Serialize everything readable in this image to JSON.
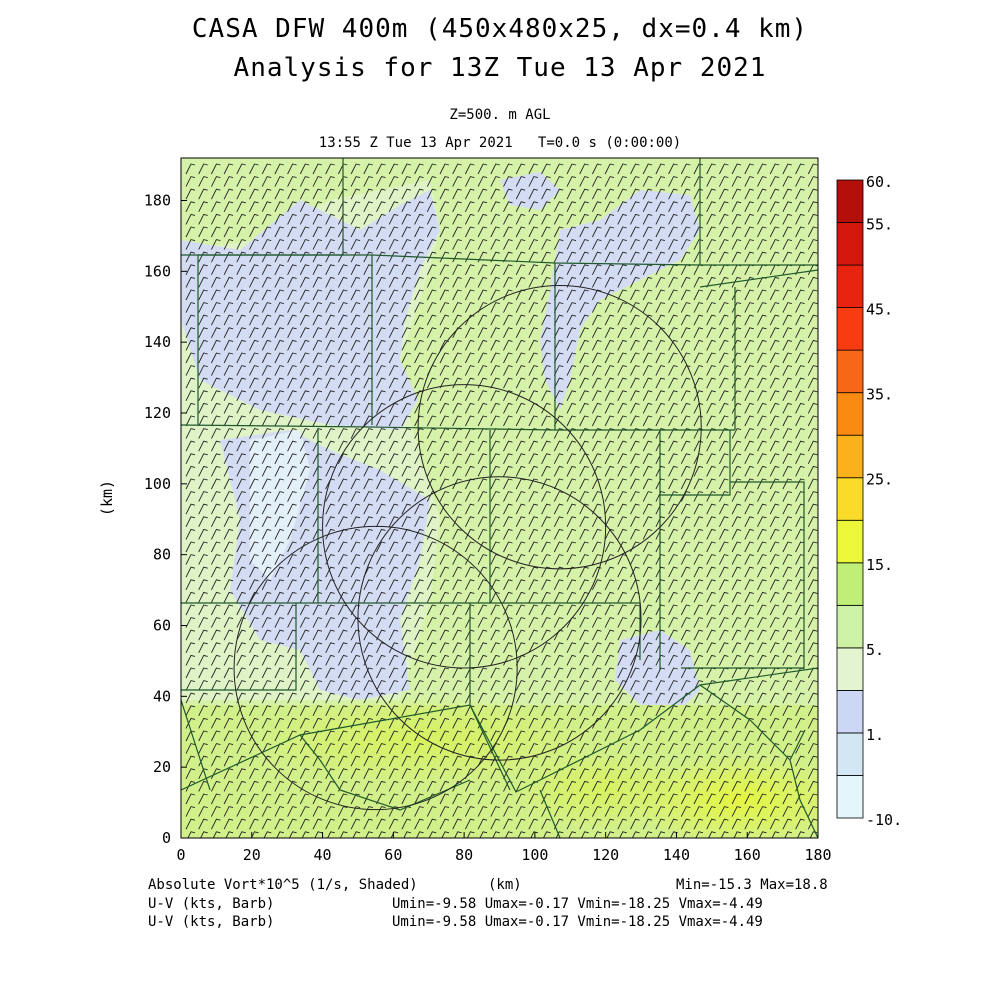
{
  "header": {
    "title": "CASA DFW 400m (450x480x25, dx=0.4 km)",
    "subtitle": "Analysis for 13Z Tue 13 Apr 2021",
    "level": "Z=500. m AGL",
    "time": "13:55 Z Tue 13 Apr 2021   T=0.0 s (0:00:00)"
  },
  "axes": {
    "x_ticks": [
      "0",
      "20",
      "40",
      "60",
      "80",
      "100",
      "120",
      "140",
      "160",
      "180"
    ],
    "y_ticks": [
      "0",
      "20",
      "40",
      "60",
      "80",
      "100",
      "120",
      "140",
      "160",
      "180"
    ],
    "x_label": "(km)",
    "y_label": "(km)",
    "xlim": [
      0,
      180
    ],
    "ylim": [
      0,
      192
    ]
  },
  "colorbar": {
    "labels": [
      "60.",
      "55.",
      "45.",
      "35.",
      "25.",
      "15.",
      "5.",
      "1.",
      "-10."
    ],
    "colors": [
      "#e4f5fb",
      "#d2e6f4",
      "#ccd7f4",
      "#e2f5d0",
      "#cdf2a5",
      "#bfef76",
      "#ecf73a",
      "#fadb2a",
      "#fbb11b",
      "#fa8a12",
      "#f86617",
      "#f93b12",
      "#e82410",
      "#d2170d",
      "#b40f0a"
    ]
  },
  "footer": {
    "field": "Absolute Vort*10^5 (1/s, Shaded)",
    "field_range": "Min=-15.3 Max=18.8",
    "barb1": "U-V (kts, Barb)",
    "barb1_range": "Umin=-9.58 Umax=-0.17 Vmin=-18.25 Vmax=-4.49",
    "barb2": "U-V (kts, Barb)",
    "barb2_range": "Umin=-9.58 Umax=-0.17 Vmin=-18.25 Vmax=-4.49"
  },
  "map": {
    "radar_rings": [
      {
        "cx_km": 107,
        "cy_km": 116,
        "r_km": 40
      },
      {
        "cx_km": 80,
        "cy_km": 88,
        "r_km": 40
      },
      {
        "cx_km": 90,
        "cy_km": 62,
        "r_km": 40
      },
      {
        "cx_km": 55,
        "cy_km": 48,
        "r_km": 40
      }
    ]
  }
}
